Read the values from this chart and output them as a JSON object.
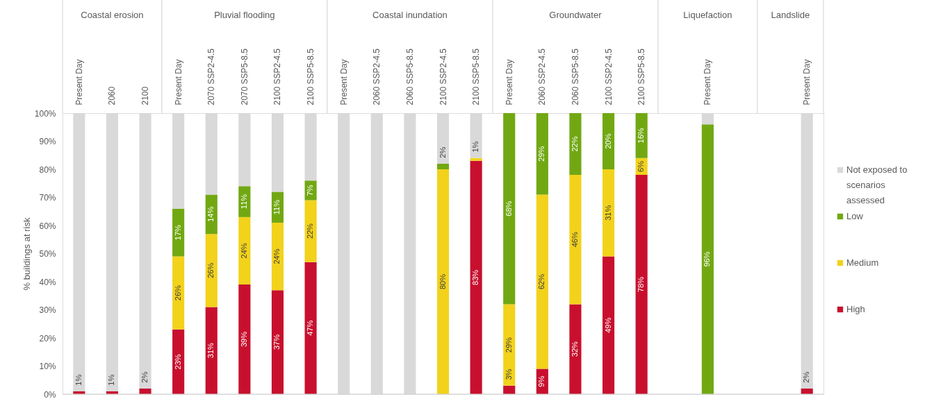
{
  "chart_data": {
    "type": "bar",
    "stacked": true,
    "ylabel": "% buildings at risk",
    "categories": [
      "Present Day",
      "2060",
      "2100",
      "Present Day",
      "2070 SSP2-4.5",
      "2070 SSP5-8.5",
      "2100 SSP2-4.5",
      "2100 SSP5-8.5",
      "Present Day",
      "2060 SSP2-4.5",
      "2060 SSP5-8.5",
      "2100 SSP2-4.5",
      "2100 SSP5-8.5",
      "Present Day",
      "2060 SSP2-4.5",
      "2060 SSP5-8.5",
      "2100 SSP2-4.5",
      "2100 SSP5-8.5",
      null,
      "Present Day",
      null,
      null,
      "Present Day"
    ],
    "series": [
      {
        "name": "High",
        "color": "#c8102e",
        "values": [
          1,
          1,
          2,
          23,
          31,
          39,
          37,
          47,
          0,
          0,
          0,
          null,
          83,
          3,
          9,
          32,
          49,
          78,
          null,
          0,
          null,
          null,
          2
        ],
        "value_labels": [
          "1%",
          "1%",
          "2%",
          "23%",
          "31%",
          "39%",
          "37%",
          "47%",
          null,
          null,
          null,
          null,
          "83%",
          "3%",
          "9%",
          "32%",
          "49%",
          "78%",
          null,
          null,
          null,
          null,
          "2%"
        ]
      },
      {
        "name": "Medium",
        "color": "#f2d21b",
        "values": [
          0,
          0,
          0,
          26,
          26,
          24,
          24,
          22,
          0,
          null,
          null,
          80,
          1,
          29,
          62,
          46,
          31,
          6,
          null,
          0,
          null,
          null,
          0
        ],
        "value_labels": [
          null,
          null,
          null,
          "26%",
          "26%",
          "24%",
          "24%",
          "22%",
          null,
          null,
          null,
          "80%",
          "1%",
          "29%",
          "62%",
          "46%",
          "31%",
          "6%",
          null,
          null,
          null,
          null,
          null
        ]
      },
      {
        "name": "Low",
        "color": "#71a812",
        "values": [
          0,
          0,
          0,
          17,
          14,
          11,
          11,
          7,
          0,
          0,
          0,
          2,
          0,
          68,
          29,
          22,
          20,
          16,
          null,
          96,
          null,
          null,
          0
        ],
        "value_labels": [
          null,
          null,
          null,
          "17%",
          "14%",
          "11%",
          "11%",
          "7%",
          null,
          null,
          null,
          "2%",
          null,
          "68%",
          "29%",
          "22%",
          "20%",
          "16%",
          null,
          "96%",
          null,
          null,
          null
        ]
      },
      {
        "name": "Not exposed to scenarios assessed",
        "color": "#d9d9d9",
        "values": [
          99,
          99,
          98,
          34,
          29,
          26,
          28,
          24,
          100,
          100,
          100,
          18,
          16,
          0,
          0,
          0,
          0,
          0,
          null,
          4,
          null,
          null,
          98
        ]
      }
    ],
    "ylim": [
      0,
      100
    ],
    "yticks": [
      {
        "value": 0,
        "label": "0%"
      },
      {
        "value": 10,
        "label": "10%"
      },
      {
        "value": 20,
        "label": "20%"
      },
      {
        "value": 30,
        "label": "30%"
      },
      {
        "value": 40,
        "label": "40%"
      },
      {
        "value": 50,
        "label": "50%"
      },
      {
        "value": 60,
        "label": "60%"
      },
      {
        "value": 70,
        "label": "70%"
      },
      {
        "value": 80,
        "label": "80%"
      },
      {
        "value": 90,
        "label": "90%"
      },
      {
        "value": 100,
        "label": "100%"
      }
    ],
    "annotations": [
      "Coastal erosion",
      "Pluvial flooding",
      "Coastal inundation",
      "Groundwater",
      "Liquefaction",
      "Landslide"
    ],
    "legend": "right"
  }
}
